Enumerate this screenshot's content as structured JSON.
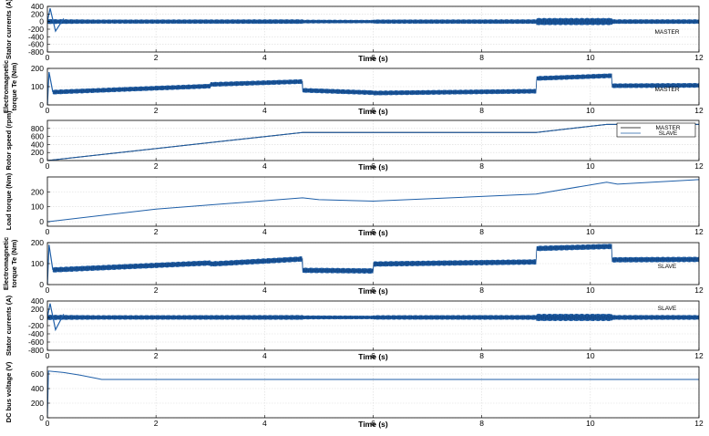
{
  "chart_data": [
    {
      "type": "line",
      "ylabel": "Stator currents (A)",
      "xlabel": "Time (s)",
      "xlim": [
        0,
        12
      ],
      "ylim": [
        -800,
        400
      ],
      "yticks": [
        400,
        200,
        0,
        -200,
        -400,
        -600,
        -800
      ],
      "xticks": [
        0,
        2,
        4,
        6,
        8,
        10,
        12
      ],
      "annotation": "MASTER",
      "annotation_position": "right",
      "grid": true,
      "style": "band",
      "series": [
        {
          "color": "#1f5fa8",
          "x": [
            0,
            1,
            4.7,
            4.7,
            6,
            6,
            9,
            9,
            10.4,
            10.4,
            12
          ],
          "center": [
            0,
            0,
            0,
            0,
            0,
            0,
            0,
            0,
            0,
            0,
            0
          ],
          "amplitude": [
            60,
            50,
            55,
            45,
            40,
            50,
            55,
            90,
            90,
            55,
            55
          ],
          "transient": {
            "x": [
              0,
              0.05,
              0.15,
              0.3
            ],
            "y": [
              0,
              350,
              -250,
              80
            ]
          }
        }
      ]
    },
    {
      "type": "line",
      "ylabel": "Electromagnetic torque Te (Nm)",
      "xlabel": "Time (s)",
      "xlim": [
        0,
        12
      ],
      "ylim": [
        0,
        200
      ],
      "yticks": [
        200,
        100,
        0
      ],
      "xticks": [
        0,
        2,
        4,
        6,
        8,
        10,
        12
      ],
      "annotation": "MASTER",
      "annotation_position": "right",
      "grid": true,
      "style": "band",
      "series": [
        {
          "color": "#1f5fa8",
          "x": [
            0.1,
            3,
            3,
            4.7,
            4.7,
            6,
            6,
            9,
            9,
            10.4,
            10.4,
            12
          ],
          "center": [
            70,
            103,
            112,
            128,
            80,
            67,
            65,
            75,
            145,
            160,
            105,
            107
          ],
          "amplitude": [
            12,
            12,
            12,
            12,
            12,
            12,
            12,
            12,
            12,
            12,
            12,
            12
          ],
          "transient": {
            "x": [
              0,
              0.03,
              0.1
            ],
            "y": [
              0,
              180,
              70
            ]
          }
        }
      ]
    },
    {
      "type": "line",
      "ylabel": "Rotor speed (rpm)",
      "xlabel": "Time (s)",
      "xlim": [
        0,
        12
      ],
      "ylim": [
        0,
        1000
      ],
      "yticks": [
        800,
        600,
        400,
        200,
        0
      ],
      "xticks": [
        0,
        2,
        4,
        6,
        8,
        10,
        12
      ],
      "grid": true,
      "legend_position": "top-right",
      "series": [
        {
          "name": "MASTER",
          "color": "#000000",
          "x": [
            0,
            4.7,
            9,
            10.3,
            12
          ],
          "y": [
            0,
            700,
            700,
            900,
            900
          ]
        },
        {
          "name": "SLAVE",
          "color": "#1f5fa8",
          "x": [
            0,
            4.7,
            9,
            10.3,
            12
          ],
          "y": [
            0,
            700,
            700,
            900,
            900
          ]
        }
      ]
    },
    {
      "type": "line",
      "ylabel": "Load torque (Nm)",
      "xlabel": "Time (s)",
      "xlim": [
        0,
        12
      ],
      "ylim": [
        -30,
        300
      ],
      "yticks": [
        200,
        100,
        0
      ],
      "xticks": [
        0,
        2,
        4,
        6,
        8,
        10,
        12
      ],
      "grid": true,
      "series": [
        {
          "color": "#1f5fa8",
          "x": [
            0,
            2,
            4.7,
            5,
            6,
            9,
            9.1,
            10.3,
            10.5,
            12
          ],
          "y": [
            0,
            85,
            160,
            148,
            138,
            185,
            192,
            265,
            252,
            282
          ]
        }
      ]
    },
    {
      "type": "line",
      "ylabel": "Electromagnetic torque Te (Nm)",
      "xlabel": "Time (s)",
      "xlim": [
        0,
        12
      ],
      "ylim": [
        0,
        200
      ],
      "yticks": [
        200,
        100,
        0
      ],
      "xticks": [
        0,
        2,
        4,
        6,
        8,
        10,
        12
      ],
      "annotation": "SLAVE",
      "annotation_position": "right",
      "grid": true,
      "style": "band",
      "series": [
        {
          "color": "#1f5fa8",
          "x": [
            0.1,
            3,
            3,
            4.7,
            4.7,
            6,
            6,
            9,
            9,
            10.4,
            10.4,
            12
          ],
          "center": [
            70,
            103,
            98,
            122,
            68,
            65,
            98,
            108,
            172,
            182,
            118,
            120
          ],
          "amplitude": [
            12,
            12,
            12,
            12,
            12,
            12,
            12,
            12,
            12,
            12,
            12,
            12
          ],
          "transient": {
            "x": [
              0,
              0.03,
              0.1
            ],
            "y": [
              0,
              190,
              70
            ]
          }
        }
      ]
    },
    {
      "type": "line",
      "ylabel": "Stator currents (A)",
      "xlabel": "Time (s)",
      "xlim": [
        0,
        12
      ],
      "ylim": [
        -800,
        400
      ],
      "yticks": [
        400,
        200,
        0,
        -200,
        -400,
        -600,
        -800
      ],
      "xticks": [
        0,
        2,
        4,
        6,
        8,
        10,
        12
      ],
      "annotation": "SLAVE",
      "annotation_position": "top-right",
      "grid": true,
      "style": "band",
      "series": [
        {
          "color": "#1f5fa8",
          "x": [
            0,
            1,
            4.7,
            4.7,
            6,
            6,
            9,
            9,
            10.4,
            10.4,
            12
          ],
          "center": [
            0,
            0,
            0,
            0,
            0,
            0,
            0,
            0,
            0,
            0,
            0
          ],
          "amplitude": [
            60,
            50,
            55,
            45,
            40,
            50,
            55,
            85,
            85,
            55,
            55
          ],
          "transient": {
            "x": [
              0,
              0.05,
              0.15,
              0.3
            ],
            "y": [
              0,
              340,
              -300,
              80
            ]
          }
        }
      ]
    },
    {
      "type": "line",
      "ylabel": "DC bus voltage (V)",
      "xlabel": "Time (s)",
      "xlim": [
        0,
        12
      ],
      "ylim": [
        0,
        700
      ],
      "yticks": [
        600,
        400,
        200,
        0
      ],
      "xticks": [
        0,
        2,
        4,
        6,
        8,
        10,
        12
      ],
      "grid": true,
      "series": [
        {
          "color": "#1f5fa8",
          "x": [
            0,
            0.02,
            0.3,
            0.6,
            0.9,
            1.0,
            12
          ],
          "y": [
            0,
            640,
            620,
            585,
            540,
            525,
            525
          ]
        }
      ]
    }
  ]
}
